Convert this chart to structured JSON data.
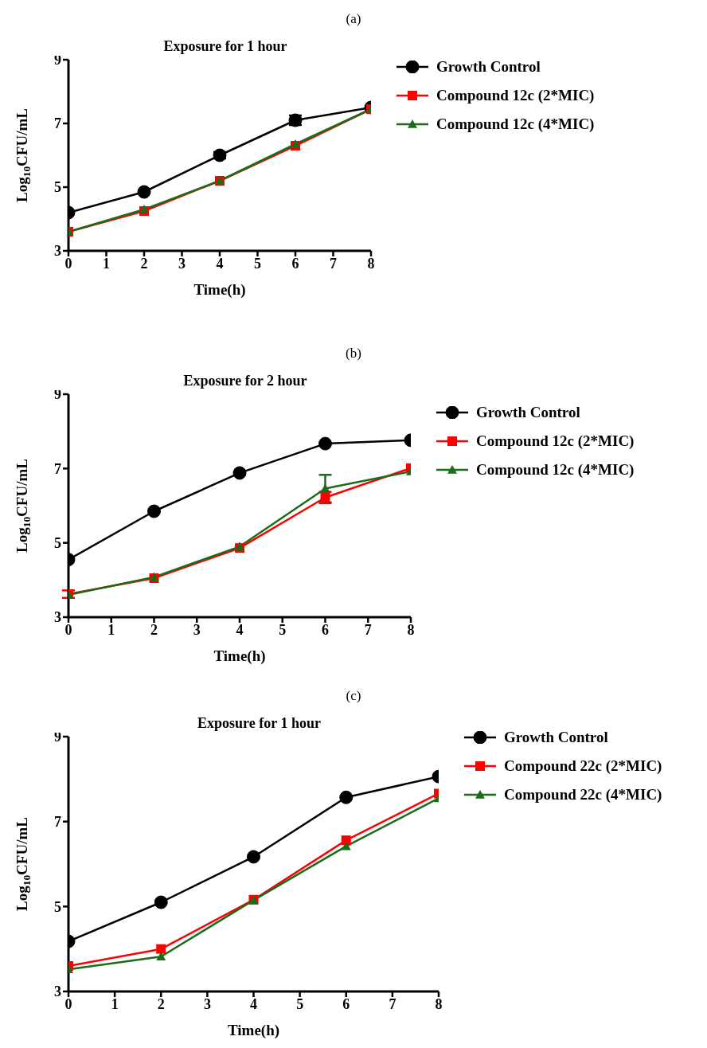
{
  "chart_data": [
    {
      "type": "line",
      "annotations": [
        "(a)"
      ],
      "title": "Exposure for 1 hour",
      "xlabel": "Time(h)",
      "ylabel": "Log$_{10}$CFU/mL",
      "xlim": [
        0,
        8
      ],
      "xticks": [
        0,
        1,
        2,
        3,
        4,
        5,
        6,
        7,
        8
      ],
      "ylim": [
        3,
        9
      ],
      "yticks": [
        3,
        5,
        7,
        9
      ],
      "grid": false,
      "legend": "right",
      "x": [
        0,
        2,
        4,
        6,
        8
      ],
      "series": [
        {
          "name": "Growth Control",
          "color": "#000000",
          "marker": "circle",
          "values": [
            4.2,
            4.85,
            6.0,
            7.1,
            7.5
          ],
          "errors": [
            null,
            null,
            0.1,
            0.15,
            null
          ]
        },
        {
          "name": "Compound 12c (2*MIC)",
          "color": "#ff0000",
          "marker": "square",
          "values": [
            3.6,
            4.25,
            5.2,
            6.3,
            7.45
          ]
        },
        {
          "name": "Compound 12c (4*MIC)",
          "color": "#1a6b1a",
          "marker": "triangle",
          "values": [
            3.6,
            4.3,
            5.2,
            6.35,
            7.45
          ]
        }
      ]
    },
    {
      "type": "line",
      "annotations": [
        "(b)"
      ],
      "title": "Exposure for 2 hour",
      "xlabel": "Time(h)",
      "ylabel": "Log$_{10}$CFU/mL",
      "xlim": [
        0,
        8
      ],
      "xticks": [
        0,
        1,
        2,
        3,
        4,
        5,
        6,
        7,
        8
      ],
      "ylim": [
        3,
        9
      ],
      "yticks": [
        3,
        5,
        7,
        9
      ],
      "grid": false,
      "legend": "right",
      "x": [
        0,
        2,
        4,
        6,
        8
      ],
      "series": [
        {
          "name": "Growth Control",
          "color": "#000000",
          "marker": "circle",
          "values": [
            4.55,
            5.85,
            6.88,
            7.67,
            7.76
          ]
        },
        {
          "name": "Compound 12c (2*MIC)",
          "color": "#ff0000",
          "marker": "square",
          "values": [
            3.62,
            4.05,
            4.86,
            6.22,
            7.01
          ],
          "errors": [
            0.1,
            null,
            null,
            0.15,
            null
          ]
        },
        {
          "name": "Compound 12c (4*MIC)",
          "color": "#1a6b1a",
          "marker": "triangle",
          "values": [
            3.6,
            4.08,
            4.9,
            6.46,
            6.92
          ],
          "errors": [
            null,
            null,
            null,
            0.37,
            null
          ]
        }
      ]
    },
    {
      "type": "line",
      "annotations": [
        "(c)"
      ],
      "title": "Exposure for 1 hour",
      "xlabel": "Time(h)",
      "ylabel": "Log$_{10}$CFU/mL",
      "xlim": [
        0,
        8
      ],
      "xticks": [
        0,
        1,
        2,
        3,
        4,
        5,
        6,
        7,
        8
      ],
      "ylim": [
        3,
        9
      ],
      "yticks": [
        3,
        5,
        7,
        9
      ],
      "grid": false,
      "legend": "right",
      "x": [
        0,
        2,
        4,
        6,
        8
      ],
      "series": [
        {
          "name": "Growth Control",
          "color": "#000000",
          "marker": "circle",
          "values": [
            4.18,
            5.1,
            6.17,
            7.57,
            8.06
          ]
        },
        {
          "name": "Compound 22c (2*MIC)",
          "color": "#ff0000",
          "marker": "square",
          "values": [
            3.6,
            4.0,
            5.16,
            6.56,
            7.66
          ]
        },
        {
          "name": "Compound 22c (4*MIC)",
          "color": "#1a6b1a",
          "marker": "triangle",
          "values": [
            3.52,
            3.82,
            5.15,
            6.42,
            7.55
          ]
        }
      ]
    }
  ]
}
